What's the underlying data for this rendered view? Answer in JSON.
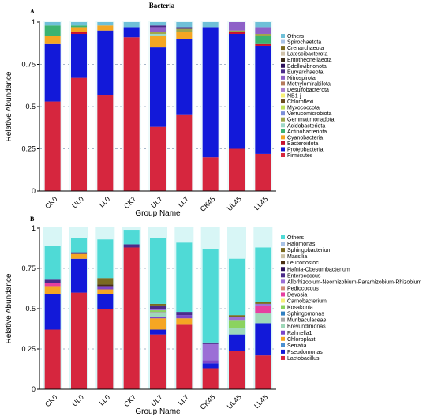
{
  "figure": {
    "title": "Bacteria"
  },
  "chart_data": [
    {
      "panel_label": "A",
      "type": "bar",
      "stacked": true,
      "xlabel": "Group Name",
      "ylabel": "Relative Abundance",
      "ylim": [
        0,
        1
      ],
      "yticks": [
        "0",
        "0.25",
        "0.5",
        "0.75",
        "1"
      ],
      "grid": "dashed horizontal",
      "legend_position": "right",
      "categories": [
        "CK0",
        "UL0",
        "LL0",
        "CK7",
        "UL7",
        "LL7",
        "CK45",
        "UL45",
        "LL45"
      ],
      "series": [
        {
          "name": "Firmicutes",
          "color": "#d6263e",
          "values": [
            0.53,
            0.67,
            0.57,
            0.91,
            0.38,
            0.45,
            0.2,
            0.25,
            0.22
          ]
        },
        {
          "name": "Proteobacteria",
          "color": "#1219d9",
          "values": [
            0.34,
            0.26,
            0.38,
            0.06,
            0.47,
            0.45,
            0.77,
            0.68,
            0.64
          ]
        },
        {
          "name": "Bacteroidota",
          "color": "#c8102e",
          "values": [
            0.0,
            0.01,
            0.0,
            0.0,
            0.0,
            0.0,
            0.0,
            0.01,
            0.01
          ]
        },
        {
          "name": "Cyanobacteria",
          "color": "#f5a623",
          "values": [
            0.05,
            0.03,
            0.03,
            0.0,
            0.07,
            0.04,
            0.0,
            0.0,
            0.0
          ]
        },
        {
          "name": "Actinobacteriota",
          "color": "#3cb371",
          "values": [
            0.06,
            0.01,
            0.0,
            0.0,
            0.0,
            0.0,
            0.0,
            0.0,
            0.05
          ]
        },
        {
          "name": "Acidobacteriota",
          "color": "#9fd8c8",
          "values": [
            0.0,
            0.0,
            0.0,
            0.0,
            0.01,
            0.0,
            0.0,
            0.0,
            0.0
          ]
        },
        {
          "name": "Gemmatimonadota",
          "color": "#9ea64c",
          "values": [
            0.0,
            0.0,
            0.0,
            0.0,
            0.01,
            0.02,
            0.0,
            0.01,
            0.01
          ]
        },
        {
          "name": "Verrucomicrobiota",
          "color": "#7b8fd8",
          "values": [
            0.0,
            0.0,
            0.0,
            0.0,
            0.0,
            0.0,
            0.0,
            0.0,
            0.0
          ]
        },
        {
          "name": "Myxococcota",
          "color": "#bfe05a",
          "values": [
            0.0,
            0.0,
            0.0,
            0.0,
            0.0,
            0.0,
            0.0,
            0.0,
            0.0
          ]
        },
        {
          "name": "Chloroflexi",
          "color": "#6b4c1e",
          "values": [
            0.0,
            0.0,
            0.0,
            0.0,
            0.0,
            0.0,
            0.0,
            0.0,
            0.0
          ]
        },
        {
          "name": "NB1-j",
          "color": "#f8f075",
          "values": [
            0.0,
            0.0,
            0.0,
            0.0,
            0.0,
            0.0,
            0.0,
            0.0,
            0.0
          ]
        },
        {
          "name": "Desulfobacterota",
          "color": "#a87fd0",
          "values": [
            0.0,
            0.0,
            0.0,
            0.0,
            0.0,
            0.0,
            0.0,
            0.0,
            0.0
          ]
        },
        {
          "name": "Methylomirabilota",
          "color": "#b47a5c",
          "values": [
            0.0,
            0.0,
            0.0,
            0.0,
            0.0,
            0.0,
            0.0,
            0.0,
            0.0
          ]
        },
        {
          "name": "Nitrospirota",
          "color": "#8e61c8",
          "values": [
            0.0,
            0.0,
            0.0,
            0.0,
            0.03,
            0.0,
            0.0,
            0.05,
            0.04
          ]
        },
        {
          "name": "Euryarchaeota",
          "color": "#4b2a8a",
          "values": [
            0.0,
            0.0,
            0.0,
            0.0,
            0.01,
            0.01,
            0.0,
            0.0,
            0.0
          ]
        },
        {
          "name": "Bdellovibrionota",
          "color": "#2b0f5a",
          "values": [
            0.0,
            0.0,
            0.0,
            0.0,
            0.0,
            0.0,
            0.0,
            0.0,
            0.0
          ]
        },
        {
          "name": "Entotheonellaeota",
          "color": "#3a2a1a",
          "values": [
            0.0,
            0.0,
            0.0,
            0.0,
            0.0,
            0.0,
            0.0,
            0.0,
            0.0
          ]
        },
        {
          "name": "Latescibacterota",
          "color": "#cfc1a8",
          "values": [
            0.0,
            0.0,
            0.0,
            0.0,
            0.0,
            0.0,
            0.0,
            0.0,
            0.0
          ]
        },
        {
          "name": "Crenarchaeota",
          "color": "#7a6a20",
          "values": [
            0.0,
            0.0,
            0.0,
            0.0,
            0.0,
            0.0,
            0.0,
            0.0,
            0.0
          ]
        },
        {
          "name": "Spirochaetota",
          "color": "#a9c3e6",
          "values": [
            0.0,
            0.0,
            0.0,
            0.0,
            0.0,
            0.0,
            0.0,
            0.0,
            0.0
          ]
        },
        {
          "name": "Others",
          "color": "#6fc0d8",
          "values": [
            0.02,
            0.02,
            0.02,
            0.03,
            0.02,
            0.03,
            0.03,
            0.0,
            0.03
          ]
        }
      ]
    },
    {
      "panel_label": "B",
      "type": "bar",
      "stacked": true,
      "xlabel": "Group Name",
      "ylabel": "Relative Abundance",
      "ylim": [
        0,
        1
      ],
      "yticks": [
        "0",
        "0.25",
        "0.5",
        "0.75",
        "1"
      ],
      "grid": "dashed horizontal",
      "legend_position": "right",
      "categories": [
        "CK0",
        "UL0",
        "LL0",
        "CK7",
        "UL7",
        "LL7",
        "CK45",
        "UL45",
        "LL45"
      ],
      "series": [
        {
          "name": "Lactobacillus",
          "color": "#d6263e",
          "values": [
            0.37,
            0.6,
            0.5,
            0.88,
            0.34,
            0.4,
            0.13,
            0.24,
            0.21
          ]
        },
        {
          "name": "Pseudomonas",
          "color": "#1219d9",
          "values": [
            0.22,
            0.21,
            0.09,
            0.0,
            0.03,
            0.0,
            0.03,
            0.1,
            0.2
          ]
        },
        {
          "name": "Serratia",
          "color": "#4a8fd1",
          "values": [
            0.0,
            0.0,
            0.0,
            0.0,
            0.0,
            0.0,
            0.0,
            0.0,
            0.0
          ]
        },
        {
          "name": "Chloroplast",
          "color": "#f5a623",
          "values": [
            0.05,
            0.03,
            0.03,
            0.0,
            0.07,
            0.04,
            0.0,
            0.0,
            0.0
          ]
        },
        {
          "name": "Rahnella1",
          "color": "#7d45c9",
          "values": [
            0.0,
            0.0,
            0.02,
            0.0,
            0.01,
            0.02,
            0.02,
            0.0,
            0.0
          ]
        },
        {
          "name": "Brevundimonas",
          "color": "#9ed8b8",
          "values": [
            0.0,
            0.0,
            0.0,
            0.0,
            0.02,
            0.0,
            0.0,
            0.04,
            0.06
          ]
        },
        {
          "name": "Muribaculaceae",
          "color": "#a7a7a7",
          "values": [
            0.0,
            0.0,
            0.0,
            0.0,
            0.01,
            0.0,
            0.0,
            0.0,
            0.0
          ]
        },
        {
          "name": "Sphingomonas",
          "color": "#2f7fc1",
          "values": [
            0.0,
            0.0,
            0.0,
            0.0,
            0.0,
            0.0,
            0.0,
            0.0,
            0.0
          ]
        },
        {
          "name": "Kosakonia",
          "color": "#8bd35f",
          "values": [
            0.0,
            0.0,
            0.0,
            0.0,
            0.01,
            0.0,
            0.0,
            0.05,
            0.0
          ]
        },
        {
          "name": "Carnobacterium",
          "color": "#f6ef7a",
          "values": [
            0.0,
            0.0,
            0.0,
            0.0,
            0.0,
            0.0,
            0.0,
            0.0,
            0.0
          ]
        },
        {
          "name": "Devosia",
          "color": "#e63fa0",
          "values": [
            0.02,
            0.0,
            0.0,
            0.0,
            0.0,
            0.0,
            0.0,
            0.0,
            0.05
          ]
        },
        {
          "name": "Pediococcus",
          "color": "#d38b7a",
          "values": [
            0.0,
            0.0,
            0.0,
            0.0,
            0.0,
            0.0,
            0.0,
            0.0,
            0.0
          ]
        },
        {
          "name": "Allorhizobium-Neorhizobium-Pararhizobium-Rhizobium",
          "color": "#9b6fd6",
          "values": [
            0.0,
            0.0,
            0.0,
            0.0,
            0.01,
            0.0,
            0.1,
            0.02,
            0.01
          ]
        },
        {
          "name": "Enterococcus",
          "color": "#4b2a8a",
          "values": [
            0.02,
            0.01,
            0.0,
            0.02,
            0.02,
            0.02,
            0.01,
            0.0,
            0.0
          ]
        },
        {
          "name": "Hafnia-Obesumbacterium",
          "color": "#2b0f5a",
          "values": [
            0.0,
            0.0,
            0.0,
            0.0,
            0.0,
            0.0,
            0.0,
            0.0,
            0.0
          ]
        },
        {
          "name": "Leuconostoc",
          "color": "#4a2f12",
          "values": [
            0.0,
            0.0,
            0.01,
            0.0,
            0.0,
            0.0,
            0.0,
            0.0,
            0.0
          ]
        },
        {
          "name": "Massilia",
          "color": "#ccc2a6",
          "values": [
            0.0,
            0.0,
            0.0,
            0.0,
            0.0,
            0.0,
            0.0,
            0.0,
            0.0
          ]
        },
        {
          "name": "Sphingobacterium",
          "color": "#7a6a20",
          "values": [
            0.0,
            0.0,
            0.04,
            0.0,
            0.01,
            0.0,
            0.0,
            0.01,
            0.01
          ]
        },
        {
          "name": "Halomonas",
          "color": "#a9c3e6",
          "values": [
            0.0,
            0.0,
            0.0,
            0.0,
            0.0,
            0.0,
            0.0,
            0.0,
            0.0
          ]
        },
        {
          "name": "Others",
          "color": "#4fdad6",
          "values": [
            0.21,
            0.09,
            0.24,
            0.09,
            0.41,
            0.43,
            0.58,
            0.35,
            0.34
          ]
        }
      ]
    }
  ]
}
